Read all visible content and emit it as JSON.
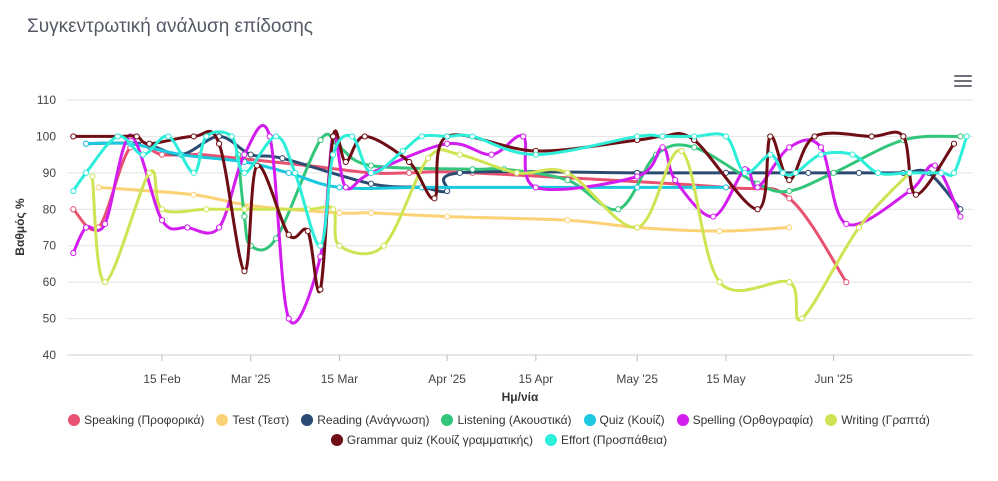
{
  "chart_data": {
    "type": "line",
    "title": "Συγκεντρωτική ανάλυση επίδοσης",
    "xlabel": "Ημ/νία",
    "ylabel": "Βαθμός %",
    "ylim": [
      40,
      110
    ],
    "yticks": [
      40,
      50,
      60,
      70,
      80,
      90,
      100,
      110
    ],
    "xlim": [
      "2025-01-31",
      "2025-06-23"
    ],
    "xticks": [
      {
        "date": "2025-02-15",
        "label": "15 Feb"
      },
      {
        "date": "2025-03-01",
        "label": "Mar '25"
      },
      {
        "date": "2025-03-15",
        "label": "15 Mar"
      },
      {
        "date": "2025-04-01",
        "label": "Apr '25"
      },
      {
        "date": "2025-04-15",
        "label": "15 Apr"
      },
      {
        "date": "2025-05-01",
        "label": "May '25"
      },
      {
        "date": "2025-05-15",
        "label": "15 May"
      },
      {
        "date": "2025-06-01",
        "label": "Jun '25"
      }
    ],
    "grid": true,
    "legend_position": "bottom",
    "series": [
      {
        "name": "Speaking (Προφορικά)",
        "color": "#e8516f",
        "points": [
          [
            "2025-02-01",
            80
          ],
          [
            "2025-02-05",
            75
          ],
          [
            "2025-02-10",
            97
          ],
          [
            "2025-02-15",
            95
          ],
          [
            "2025-02-21",
            95
          ],
          [
            "2025-02-27",
            94
          ],
          [
            "2025-03-10",
            92
          ],
          [
            "2025-03-20",
            90
          ],
          [
            "2025-03-26",
            90
          ],
          [
            "2025-04-05",
            90
          ],
          [
            "2025-05-15",
            86
          ],
          [
            "2025-05-25",
            83
          ],
          [
            "2025-06-03",
            60
          ]
        ]
      },
      {
        "name": "Test (Τεστ)",
        "color": "#fbd275",
        "points": [
          [
            "2025-02-05",
            86
          ],
          [
            "2025-02-20",
            84
          ],
          [
            "2025-03-01",
            81
          ],
          [
            "2025-03-15",
            79
          ],
          [
            "2025-03-20",
            79
          ],
          [
            "2025-04-01",
            78
          ],
          [
            "2025-04-20",
            77
          ],
          [
            "2025-05-01",
            75
          ],
          [
            "2025-05-14",
            74
          ],
          [
            "2025-05-25",
            75
          ]
        ]
      },
      {
        "name": "Reading (Ανάγνωση)",
        "color": "#2c4b73",
        "points": [
          [
            "2025-02-03",
            98
          ],
          [
            "2025-02-12",
            98
          ],
          [
            "2025-02-18",
            95
          ],
          [
            "2025-02-24",
            100
          ],
          [
            "2025-03-01",
            95
          ],
          [
            "2025-03-06",
            94
          ],
          [
            "2025-03-20",
            87
          ],
          [
            "2025-03-28",
            86
          ],
          [
            "2025-04-01",
            85
          ],
          [
            "2025-04-03",
            90
          ],
          [
            "2025-05-01",
            90
          ],
          [
            "2025-05-15",
            90
          ],
          [
            "2025-05-28",
            90
          ],
          [
            "2025-06-05",
            90
          ],
          [
            "2025-06-12",
            90
          ],
          [
            "2025-06-16",
            90
          ],
          [
            "2025-06-21",
            80
          ]
        ]
      },
      {
        "name": "Listening (Ακουστικά)",
        "color": "#33c67b",
        "points": [
          [
            "2025-02-27",
            95
          ],
          [
            "2025-02-28",
            78
          ],
          [
            "2025-03-01",
            70
          ],
          [
            "2025-03-05",
            72
          ],
          [
            "2025-03-12",
            99
          ],
          [
            "2025-03-15",
            97
          ],
          [
            "2025-03-20",
            92
          ],
          [
            "2025-04-05",
            91
          ],
          [
            "2025-04-10",
            91
          ],
          [
            "2025-04-20",
            88
          ],
          [
            "2025-04-28",
            80
          ],
          [
            "2025-05-04",
            95
          ],
          [
            "2025-05-10",
            97
          ],
          [
            "2025-05-20",
            87
          ],
          [
            "2025-05-25",
            85
          ],
          [
            "2025-06-01",
            90
          ],
          [
            "2025-06-12",
            99
          ],
          [
            "2025-06-21",
            100
          ]
        ]
      },
      {
        "name": "Quiz (Κουίζ)",
        "color": "#1ac8e0",
        "points": [
          [
            "2025-02-03",
            98
          ],
          [
            "2025-02-10",
            98
          ],
          [
            "2025-02-18",
            95
          ],
          [
            "2025-02-28",
            93
          ],
          [
            "2025-03-07",
            90
          ],
          [
            "2025-03-15",
            86
          ],
          [
            "2025-03-28",
            86
          ],
          [
            "2025-04-15",
            86
          ],
          [
            "2025-05-01",
            86
          ],
          [
            "2025-05-10",
            86
          ],
          [
            "2025-05-15",
            86
          ]
        ]
      },
      {
        "name": "Spelling (Ορθογραφία)",
        "color": "#d31df0",
        "points": [
          [
            "2025-02-01",
            68
          ],
          [
            "2025-02-03",
            75
          ],
          [
            "2025-02-06",
            76
          ],
          [
            "2025-02-10",
            100
          ],
          [
            "2025-02-15",
            77
          ],
          [
            "2025-02-19",
            75
          ],
          [
            "2025-02-24",
            75
          ],
          [
            "2025-02-28",
            95
          ],
          [
            "2025-03-04",
            100
          ],
          [
            "2025-03-07",
            50
          ],
          [
            "2025-03-12",
            67
          ],
          [
            "2025-03-14",
            100
          ],
          [
            "2025-03-16",
            86
          ],
          [
            "2025-03-20",
            90
          ],
          [
            "2025-04-01",
            98
          ],
          [
            "2025-04-08",
            95
          ],
          [
            "2025-04-13",
            100
          ],
          [
            "2025-04-15",
            86
          ],
          [
            "2025-05-01",
            89
          ],
          [
            "2025-05-05",
            97
          ],
          [
            "2025-05-07",
            88
          ],
          [
            "2025-05-13",
            78
          ],
          [
            "2025-05-18",
            91
          ],
          [
            "2025-05-20",
            86
          ],
          [
            "2025-05-25",
            97
          ],
          [
            "2025-05-30",
            97
          ],
          [
            "2025-06-03",
            76
          ],
          [
            "2025-06-13",
            85
          ],
          [
            "2025-06-17",
            92
          ],
          [
            "2025-06-21",
            78
          ]
        ]
      },
      {
        "name": "Writing (Γραπτά)",
        "color": "#cfe353",
        "points": [
          [
            "2025-02-04",
            89
          ],
          [
            "2025-02-06",
            60
          ],
          [
            "2025-02-13",
            90
          ],
          [
            "2025-02-15",
            80
          ],
          [
            "2025-02-22",
            80
          ],
          [
            "2025-02-28",
            80
          ],
          [
            "2025-03-10",
            80
          ],
          [
            "2025-03-14",
            80
          ],
          [
            "2025-03-15",
            70
          ],
          [
            "2025-03-22",
            70
          ],
          [
            "2025-03-29",
            94
          ],
          [
            "2025-04-03",
            95
          ],
          [
            "2025-04-12",
            90
          ],
          [
            "2025-04-20",
            90
          ],
          [
            "2025-05-01",
            75
          ],
          [
            "2025-05-08",
            96
          ],
          [
            "2025-05-14",
            60
          ],
          [
            "2025-05-25",
            60
          ],
          [
            "2025-05-27",
            50
          ],
          [
            "2025-06-05",
            75
          ],
          [
            "2025-06-13",
            90
          ]
        ]
      },
      {
        "name": "Grammar quiz (Κουίζ γραμματικής)",
        "color": "#6e0d13",
        "points": [
          [
            "2025-02-01",
            100
          ],
          [
            "2025-02-08",
            100
          ],
          [
            "2025-02-11",
            100
          ],
          [
            "2025-02-13",
            98
          ],
          [
            "2025-02-20",
            100
          ],
          [
            "2025-02-24",
            98
          ],
          [
            "2025-02-28",
            63
          ],
          [
            "2025-03-02",
            92
          ],
          [
            "2025-03-07",
            73
          ],
          [
            "2025-03-10",
            74
          ],
          [
            "2025-03-12",
            58
          ],
          [
            "2025-03-14",
            100
          ],
          [
            "2025-03-16",
            93
          ],
          [
            "2025-03-19",
            100
          ],
          [
            "2025-03-26",
            93
          ],
          [
            "2025-03-30",
            83
          ],
          [
            "2025-04-01",
            100
          ],
          [
            "2025-04-15",
            96
          ],
          [
            "2025-05-01",
            99
          ],
          [
            "2025-05-05",
            100
          ],
          [
            "2025-05-10",
            99
          ],
          [
            "2025-05-20",
            80
          ],
          [
            "2025-05-22",
            100
          ],
          [
            "2025-05-25",
            88
          ],
          [
            "2025-05-29",
            100
          ],
          [
            "2025-06-07",
            100
          ],
          [
            "2025-06-12",
            100
          ],
          [
            "2025-06-14",
            84
          ],
          [
            "2025-06-20",
            98
          ]
        ]
      },
      {
        "name": "Effort (Προσπάθεια)",
        "color": "#2deed9",
        "points": [
          [
            "2025-02-01",
            85
          ],
          [
            "2025-02-03",
            90
          ],
          [
            "2025-02-08",
            100
          ],
          [
            "2025-02-12",
            95
          ],
          [
            "2025-02-16",
            100
          ],
          [
            "2025-02-20",
            90
          ],
          [
            "2025-02-22",
            100
          ],
          [
            "2025-02-26",
            100
          ],
          [
            "2025-02-28",
            90
          ],
          [
            "2025-03-05",
            100
          ],
          [
            "2025-03-08",
            90
          ],
          [
            "2025-03-12",
            70
          ],
          [
            "2025-03-14",
            95
          ],
          [
            "2025-03-17",
            100
          ],
          [
            "2025-03-20",
            90
          ],
          [
            "2025-03-25",
            96
          ],
          [
            "2025-03-28",
            100
          ],
          [
            "2025-04-01",
            100
          ],
          [
            "2025-04-05",
            100
          ],
          [
            "2025-04-15",
            95
          ],
          [
            "2025-05-01",
            100
          ],
          [
            "2025-05-05",
            100
          ],
          [
            "2025-05-10",
            100
          ],
          [
            "2025-05-15",
            100
          ],
          [
            "2025-05-18",
            90
          ],
          [
            "2025-05-22",
            95
          ],
          [
            "2025-05-24",
            90
          ],
          [
            "2025-05-26",
            90
          ],
          [
            "2025-05-30",
            95
          ],
          [
            "2025-06-04",
            95
          ],
          [
            "2025-06-08",
            90
          ],
          [
            "2025-06-13",
            90
          ],
          [
            "2025-06-18",
            90
          ],
          [
            "2025-06-20",
            90
          ],
          [
            "2025-06-22",
            100
          ]
        ]
      }
    ]
  }
}
